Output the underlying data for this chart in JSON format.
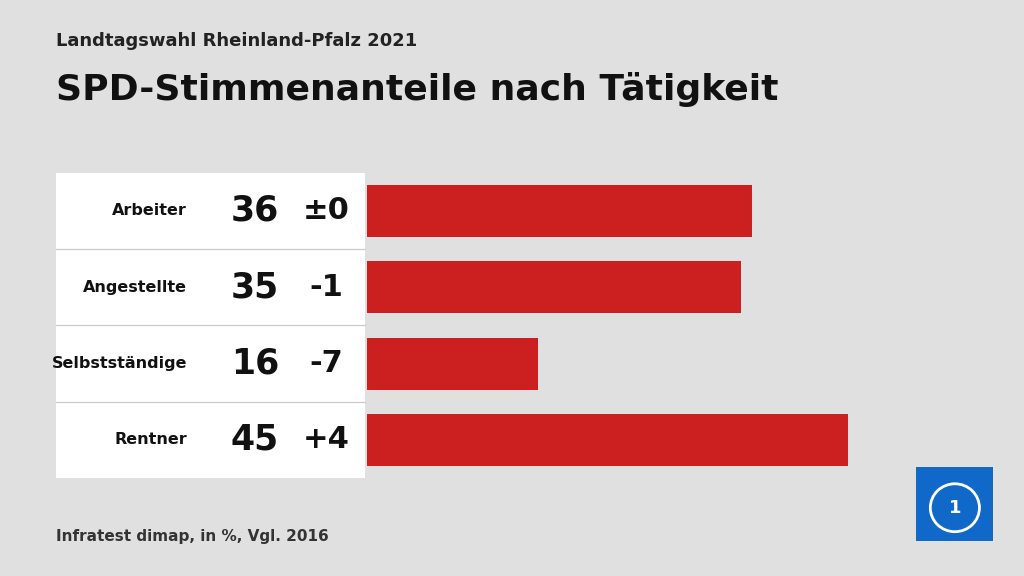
{
  "supertitle": "Landtagswahl Rheinland-Pfalz 2021",
  "title": "SPD-Stimmenanteile nach Tätigkeit",
  "categories": [
    "Arbeiter",
    "Angestellte",
    "Selbstständige",
    "Rentner"
  ],
  "values": [
    36,
    35,
    16,
    45
  ],
  "changes": [
    "±0",
    "-1",
    "-7",
    "+4"
  ],
  "bar_color": "#cc1f1f",
  "bg_color": "#e0e0e0",
  "white_panel_color": "#ffffff",
  "separator_color": "#cccccc",
  "footer": "Infratest dimap, in %, Vgl. 2016",
  "bar_max": 50,
  "supertitle_fontsize": 13,
  "title_fontsize": 26,
  "category_fontsize": 11.5,
  "value_fontsize": 25,
  "change_fontsize": 22,
  "footer_fontsize": 11
}
